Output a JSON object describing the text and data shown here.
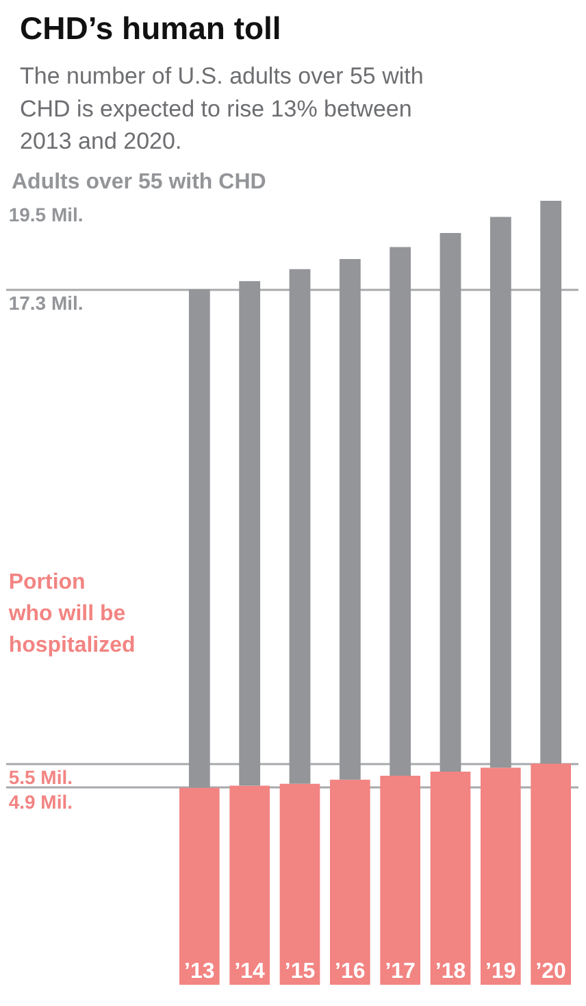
{
  "chart_data": {
    "type": "bar",
    "title": "CHD’s human toll",
    "subtitle": "The number of U.S. adults over 55 with CHD is expected to rise 13% between 2013 and 2020.",
    "categories": [
      "’13",
      "’14",
      "’15",
      "’16",
      "’17",
      "’18",
      "’19",
      "’20"
    ],
    "stacked": true,
    "series": [
      {
        "color": "#f28482",
        "values": [
          4.9,
          4.95,
          5.0,
          5.1,
          5.2,
          5.3,
          5.4,
          5.5
        ]
      },
      {
        "color": "#939598",
        "values": [
          12.4,
          12.55,
          12.8,
          12.95,
          13.15,
          13.4,
          13.7,
          14.0
        ]
      }
    ],
    "ylim": [
      0,
      19.5
    ],
    "yticks": [
      {
        "value": 4.9,
        "label": "4.9 Mil."
      },
      {
        "value": 5.5,
        "label": "5.5 Mil."
      },
      {
        "value": 17.3,
        "label": "17.3 Mil."
      },
      {
        "value": 19.5,
        "label": "19.5 Mil."
      }
    ],
    "annotations": [
      "Adults over 55 with CHD",
      "Portion\nwho will be\nhospitalized"
    ],
    "grid": "y"
  }
}
